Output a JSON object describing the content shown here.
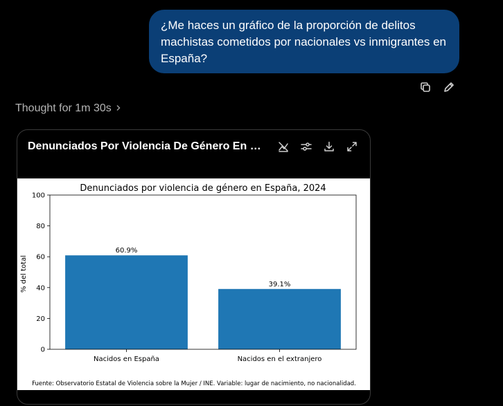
{
  "user_message": "¿Me haces un gráfico de la proporción de delitos machistas cometidos por nacionales vs inmigrantes en España?",
  "thought": {
    "label": "Thought for 1m 30s"
  },
  "icons": {
    "copy": "copy-icon",
    "edit": "edit-icon",
    "chevron": "chevron-right-icon",
    "hide_chart": "hide-chart-icon",
    "settings": "sliders-icon",
    "download": "download-icon",
    "expand": "expand-icon"
  },
  "card": {
    "title": "Denunciados Por Violencia De Género En Es..."
  },
  "chart_data": {
    "type": "bar",
    "title": "Denunciados por violencia de género en España, 2024",
    "categories": [
      "Nacidos en España",
      "Nacidos en el extranjero"
    ],
    "values": [
      60.9,
      39.1
    ],
    "value_labels": [
      "60.9%",
      "39.1%"
    ],
    "xlabel": "",
    "ylabel": "% del total",
    "ylim": [
      0,
      100
    ],
    "yticks": [
      0,
      20,
      40,
      60,
      80,
      100
    ],
    "bar_color": "#1f77b4",
    "grid": false,
    "footnote": "Fuente: Observatorio Estatal de Violencia sobre la Mujer / INE. Variable: lugar de nacimiento, no nacionalidad."
  }
}
